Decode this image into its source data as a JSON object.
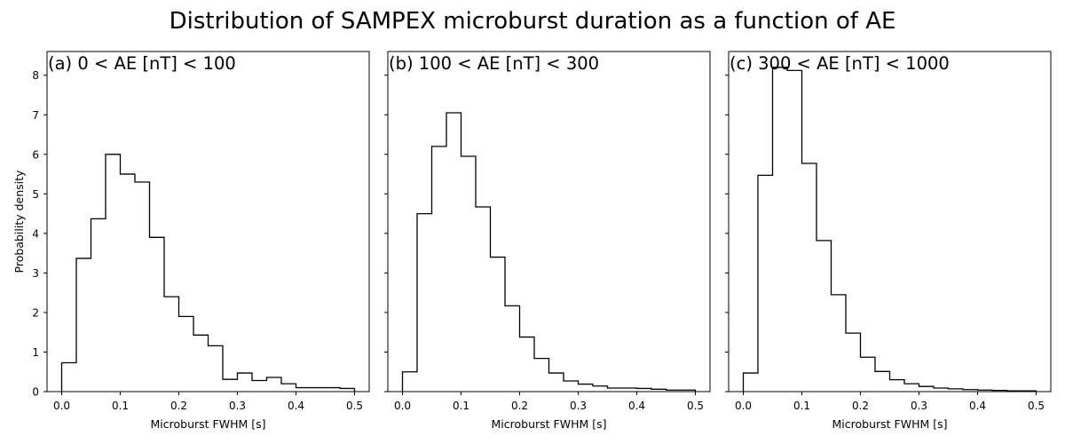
{
  "figure": {
    "title": "Distribution of SAMPEX microburst duration as a function of AE"
  },
  "chart_data": [
    {
      "type": "histogram",
      "panel_label": "(a) 0 < AE [nT] < 100",
      "xlabel": "Microburst FWHM [s]",
      "ylabel": "Probability density",
      "xlim": [
        -0.025,
        0.525
      ],
      "ylim": [
        0,
        8.6
      ],
      "xticks": [
        0.0,
        0.1,
        0.2,
        0.3,
        0.4,
        0.5
      ],
      "xtick_labels": [
        "0.0",
        "0.1",
        "0.2",
        "0.3",
        "0.4",
        "0.5"
      ],
      "yticks": [
        0,
        1,
        2,
        3,
        4,
        5,
        6,
        7,
        8
      ],
      "ytick_labels": [
        "0",
        "1",
        "2",
        "3",
        "4",
        "5",
        "6",
        "7",
        "8"
      ],
      "bin_edges": [
        0.0,
        0.025,
        0.05,
        0.075,
        0.1,
        0.125,
        0.15,
        0.175,
        0.2,
        0.225,
        0.25,
        0.275,
        0.3,
        0.325,
        0.35,
        0.375,
        0.4,
        0.425,
        0.45,
        0.475,
        0.5
      ],
      "values": [
        0.73,
        3.37,
        4.37,
        6.0,
        5.5,
        5.3,
        3.9,
        2.4,
        1.9,
        1.43,
        1.16,
        0.31,
        0.47,
        0.28,
        0.36,
        0.2,
        0.1,
        0.1,
        0.1,
        0.08
      ],
      "grid": false
    },
    {
      "type": "histogram",
      "panel_label": "(b) 100 < AE [nT] < 300",
      "xlabel": "Microburst FWHM [s]",
      "ylabel": "",
      "xlim": [
        -0.025,
        0.525
      ],
      "ylim": [
        0,
        8.6
      ],
      "xticks": [
        0.0,
        0.1,
        0.2,
        0.3,
        0.4,
        0.5
      ],
      "xtick_labels": [
        "0.0",
        "0.1",
        "0.2",
        "0.3",
        "0.4",
        "0.5"
      ],
      "yticks": [
        0,
        1,
        2,
        3,
        4,
        5,
        6,
        7,
        8
      ],
      "ytick_labels": [],
      "bin_edges": [
        0.0,
        0.025,
        0.05,
        0.075,
        0.1,
        0.125,
        0.15,
        0.175,
        0.2,
        0.225,
        0.25,
        0.275,
        0.3,
        0.325,
        0.35,
        0.375,
        0.4,
        0.425,
        0.45,
        0.475,
        0.5
      ],
      "values": [
        0.5,
        4.5,
        6.2,
        7.05,
        5.95,
        4.67,
        3.4,
        2.17,
        1.38,
        0.84,
        0.47,
        0.27,
        0.19,
        0.14,
        0.09,
        0.09,
        0.08,
        0.06,
        0.04,
        0.04
      ],
      "grid": false
    },
    {
      "type": "histogram",
      "panel_label": "(c) 300 < AE [nT] < 1000",
      "xlabel": "Microburst FWHM [s]",
      "ylabel": "",
      "xlim": [
        -0.025,
        0.525
      ],
      "ylim": [
        0,
        8.6
      ],
      "xticks": [
        0.0,
        0.1,
        0.2,
        0.3,
        0.4,
        0.5
      ],
      "xtick_labels": [
        "0.0",
        "0.1",
        "0.2",
        "0.3",
        "0.4",
        "0.5"
      ],
      "yticks": [
        0,
        1,
        2,
        3,
        4,
        5,
        6,
        7,
        8
      ],
      "ytick_labels": [],
      "bin_edges": [
        0.0,
        0.025,
        0.05,
        0.075,
        0.1,
        0.125,
        0.15,
        0.175,
        0.2,
        0.225,
        0.25,
        0.275,
        0.3,
        0.325,
        0.35,
        0.375,
        0.4,
        0.425,
        0.45,
        0.475,
        0.5
      ],
      "values": [
        0.47,
        5.47,
        8.2,
        8.12,
        5.77,
        3.82,
        2.45,
        1.48,
        0.87,
        0.51,
        0.3,
        0.2,
        0.13,
        0.09,
        0.07,
        0.05,
        0.04,
        0.03,
        0.02,
        0.02
      ],
      "grid": false
    }
  ],
  "colors": {
    "background": "#ffffff",
    "line": "#000000",
    "text": "#000000"
  }
}
